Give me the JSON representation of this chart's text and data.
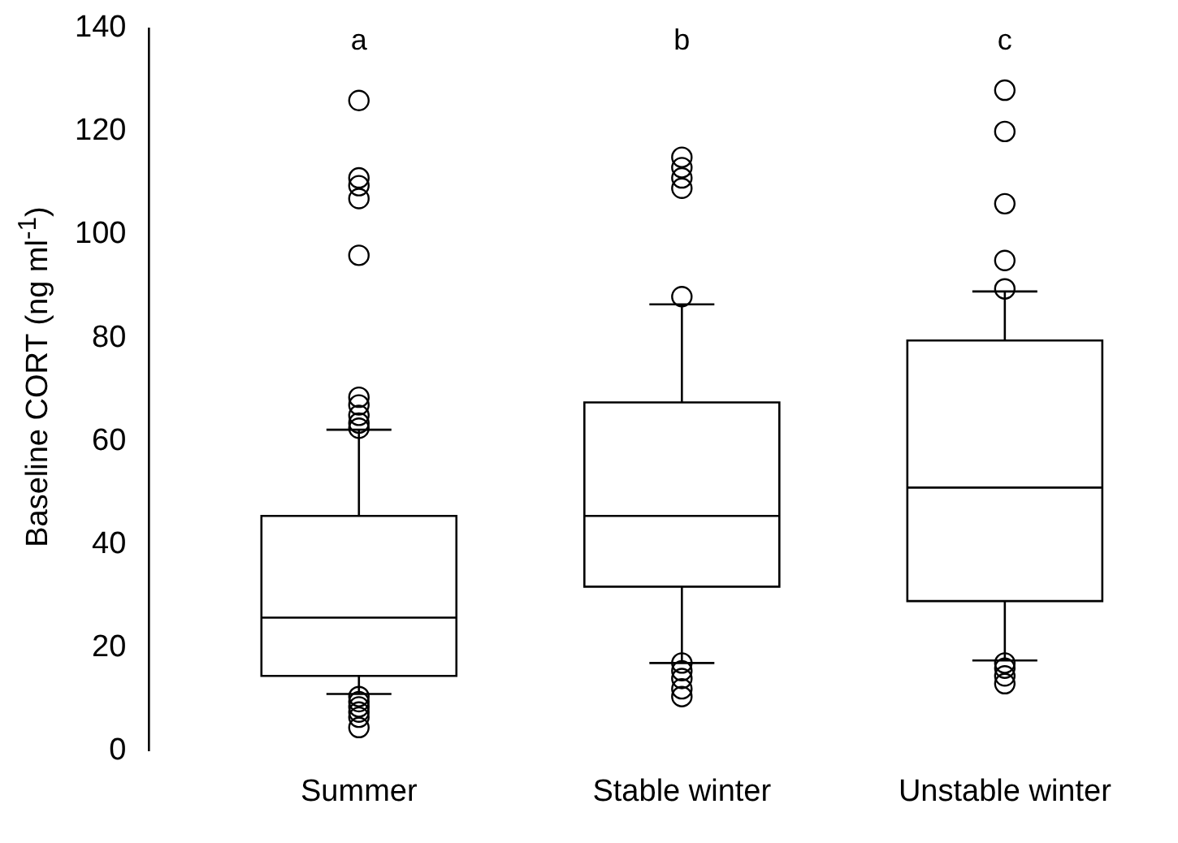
{
  "chart_data": {
    "type": "box",
    "ylabel": "Baseline CORT (ng ml$^{-1}$)",
    "categories": [
      "Summer",
      "Stable winter",
      "Unstable winter"
    ],
    "boxes": [
      {
        "low": 11,
        "q1": 14.5,
        "median": 25.8,
        "q3": 45.5,
        "high": 62.2,
        "outliers": [
          126,
          111,
          109.5,
          107,
          96,
          68.5,
          67,
          65,
          63.5,
          62.5,
          10.5,
          9.5,
          8.5,
          7.5,
          6.5,
          4.5
        ]
      },
      {
        "low": 17,
        "q1": 31.8,
        "median": 45.5,
        "q3": 67.5,
        "high": 86.5,
        "outliers": [
          115,
          113,
          111,
          109,
          88,
          17,
          15.5,
          14,
          12,
          10.5
        ]
      },
      {
        "low": 17.5,
        "q1": 29,
        "median": 51,
        "q3": 79.5,
        "high": 89,
        "outliers": [
          128,
          120,
          106,
          95,
          89.5,
          17,
          16,
          14.5,
          13
        ]
      }
    ],
    "ylim": [
      0,
      140
    ],
    "yticks": [
      0,
      20,
      40,
      60,
      80,
      100,
      120,
      140
    ],
    "grid": false,
    "legend": false,
    "marker": "circle",
    "annotations": [
      "a",
      "b",
      "c"
    ]
  }
}
